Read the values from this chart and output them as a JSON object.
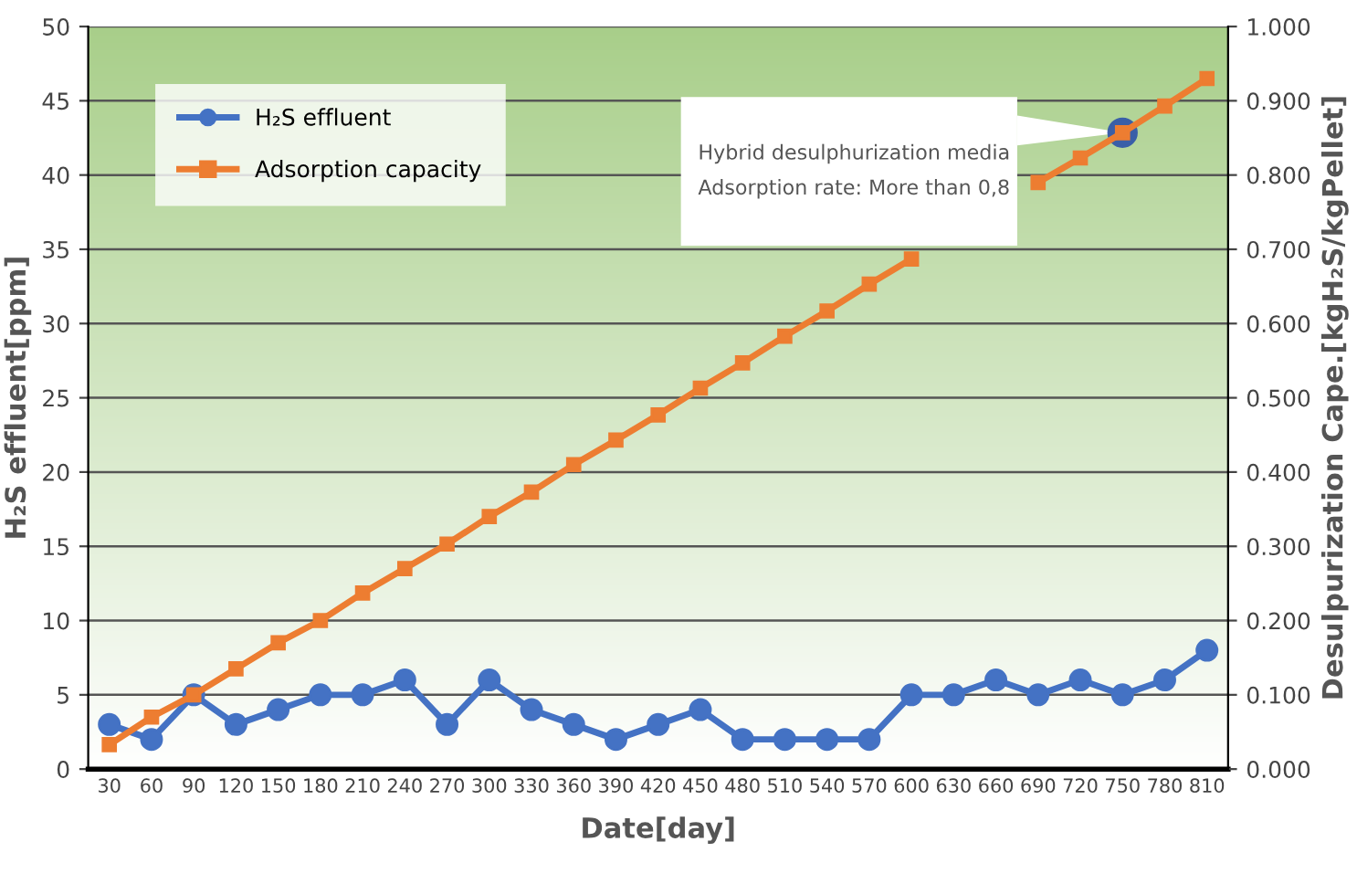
{
  "chart_data": {
    "type": "line",
    "xlabel": "Date[day]",
    "ylabel": "H₂S effluent[ppm]",
    "y2label": "Desulpurization Cape.[kgH₂S/kgPellet]",
    "categories": [
      "30",
      "60",
      "90",
      "120",
      "150",
      "180",
      "210",
      "240",
      "270",
      "300",
      "330",
      "360",
      "390",
      "420",
      "450",
      "480",
      "510",
      "540",
      "570",
      "600",
      "630",
      "660",
      "690",
      "720",
      "750",
      "780",
      "810"
    ],
    "series": [
      {
        "name": "H₂S effluent",
        "color": "#4472c4",
        "marker": "circle",
        "values": [
          3,
          2,
          5,
          3,
          4,
          5,
          5,
          6,
          3,
          6,
          4,
          3,
          2,
          3,
          4,
          2,
          2,
          2,
          2,
          5,
          5,
          6,
          5,
          6,
          5,
          6,
          8
        ]
      },
      {
        "name": "Adsorption capacity",
        "color": "#ed7d31",
        "marker": "square",
        "axis": "y2",
        "values": [
          0.033,
          0.07,
          0.1,
          0.135,
          0.17,
          0.2,
          0.237,
          0.27,
          0.303,
          0.34,
          0.373,
          0.41,
          0.443,
          0.477,
          0.513,
          0.547,
          0.583,
          0.617,
          0.653,
          0.687,
          null,
          null,
          0.79,
          0.823,
          0.857,
          0.893,
          0.93
        ]
      }
    ],
    "ylim": [
      0,
      50
    ],
    "yticks": [
      0,
      5,
      10,
      15,
      20,
      25,
      30,
      35,
      40,
      45,
      50
    ],
    "y2lim": [
      0,
      1
    ],
    "y2ticks": [
      {
        "value": 0,
        "label": "0.000"
      },
      {
        "value": 0.1,
        "label": "0.100"
      },
      {
        "value": 0.2,
        "label": "0.200"
      },
      {
        "value": 0.3,
        "label": "0.300"
      },
      {
        "value": 0.4,
        "label": "0.400"
      },
      {
        "value": 0.5,
        "label": "0.500"
      },
      {
        "value": 0.6,
        "label": "0.600"
      },
      {
        "value": 0.7,
        "label": "0.700"
      },
      {
        "value": 0.8,
        "label": "0.800"
      },
      {
        "value": 0.9,
        "label": "0.900"
      },
      {
        "value": 1,
        "label": "1.000"
      }
    ],
    "grid": "y",
    "legend": "top left",
    "annotations": [
      "Hybrid desulphurization media\nAdsorption rate: More than 0,8"
    ]
  }
}
